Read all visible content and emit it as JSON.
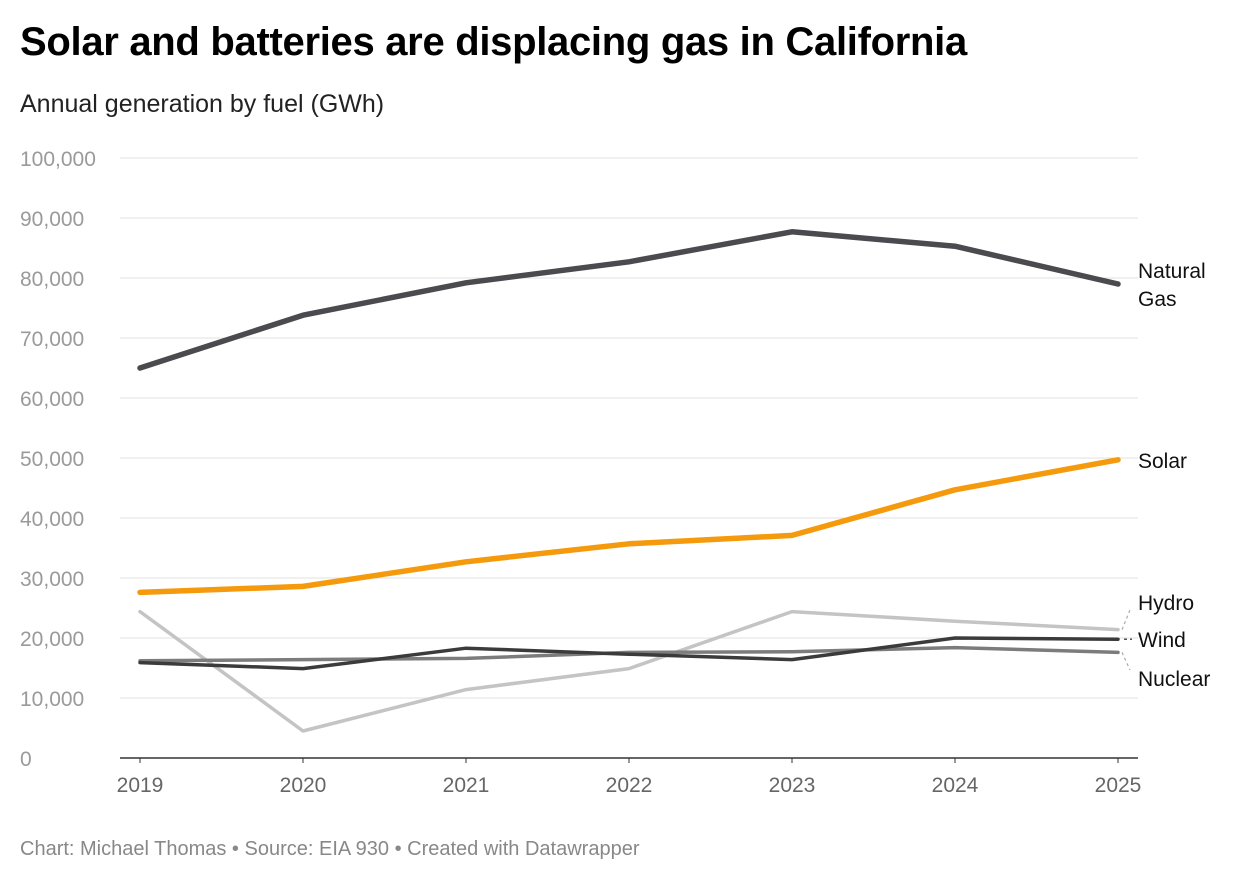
{
  "chart_data": {
    "type": "line",
    "title": "Solar and batteries are displacing gas in California",
    "subtitle": "Annual generation by fuel (GWh)",
    "x": [
      "2019",
      "2020",
      "2021",
      "2022",
      "2023",
      "2024",
      "2025"
    ],
    "ylim": [
      0,
      100000
    ],
    "yticks": [
      0,
      10000,
      20000,
      30000,
      40000,
      50000,
      60000,
      70000,
      80000,
      90000,
      100000
    ],
    "ytick_labels": [
      "0",
      "10,000",
      "20,000",
      "30,000",
      "40,000",
      "50,000",
      "60,000",
      "70,000",
      "80,000",
      "90,000",
      "100,000"
    ],
    "grid": true,
    "legend": "direct labels at right",
    "series": [
      {
        "name": "Natural Gas",
        "label_lines": [
          "Natural",
          "Gas"
        ],
        "color": "#4a4a4f",
        "values": [
          65000,
          73800,
          79200,
          82700,
          87700,
          85300,
          79000
        ]
      },
      {
        "name": "Solar",
        "label_lines": [
          "Solar"
        ],
        "color": "#f59a0c",
        "values": [
          27600,
          28600,
          32700,
          35700,
          37100,
          44700,
          49700
        ]
      },
      {
        "name": "Hydro",
        "label_lines": [
          "Hydro"
        ],
        "color": "#c4c4c4",
        "values": [
          24400,
          4500,
          11400,
          14900,
          24400,
          22800,
          21400
        ]
      },
      {
        "name": "Wind",
        "label_lines": [
          "Wind"
        ],
        "color": "#3b3b3b",
        "values": [
          15900,
          14900,
          18300,
          17300,
          16400,
          20000,
          19800
        ]
      },
      {
        "name": "Nuclear",
        "label_lines": [
          "Nuclear"
        ],
        "color": "#7c7c7c",
        "values": [
          16200,
          16400,
          16600,
          17600,
          17700,
          18400,
          17600
        ]
      }
    ]
  },
  "footer": "Chart: Michael Thomas • Source: EIA 930 • Created with Datawrapper"
}
